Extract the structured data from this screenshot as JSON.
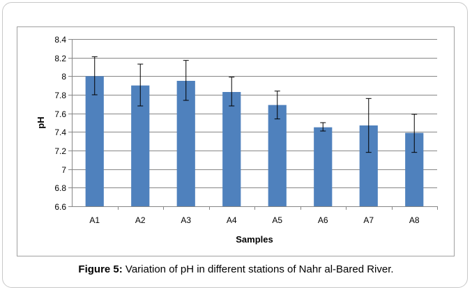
{
  "caption": {
    "label": "Figure 5:",
    "text": " Variation of pH in different stations of Nahr al-Bared River."
  },
  "colors": {
    "bar": "#4f81bd",
    "grid": "#868686",
    "axis": "#868686",
    "error_bar": "#000000",
    "text": "#000000"
  },
  "chart_data": {
    "type": "bar",
    "title": "",
    "xlabel": "Samples",
    "ylabel": "pH",
    "categories": [
      "A1",
      "A2",
      "A3",
      "A4",
      "A5",
      "A6",
      "A7",
      "A8"
    ],
    "series": [
      {
        "values": [
          8.0,
          7.9,
          7.95,
          7.83,
          7.69,
          7.45,
          7.47,
          7.39
        ],
        "error_low": [
          7.8,
          7.68,
          7.74,
          7.68,
          7.54,
          7.41,
          7.18,
          7.18
        ],
        "error_high": [
          8.21,
          8.13,
          8.17,
          7.99,
          7.84,
          7.5,
          7.76,
          7.59
        ]
      }
    ],
    "ylim": [
      6.6,
      8.4
    ],
    "yticks": [
      "6.6",
      "6.8",
      "7",
      "7.2",
      "7.4",
      "7.6",
      "7.8",
      "8",
      "8.2",
      "8.4"
    ],
    "grid": true,
    "legend": "none"
  }
}
